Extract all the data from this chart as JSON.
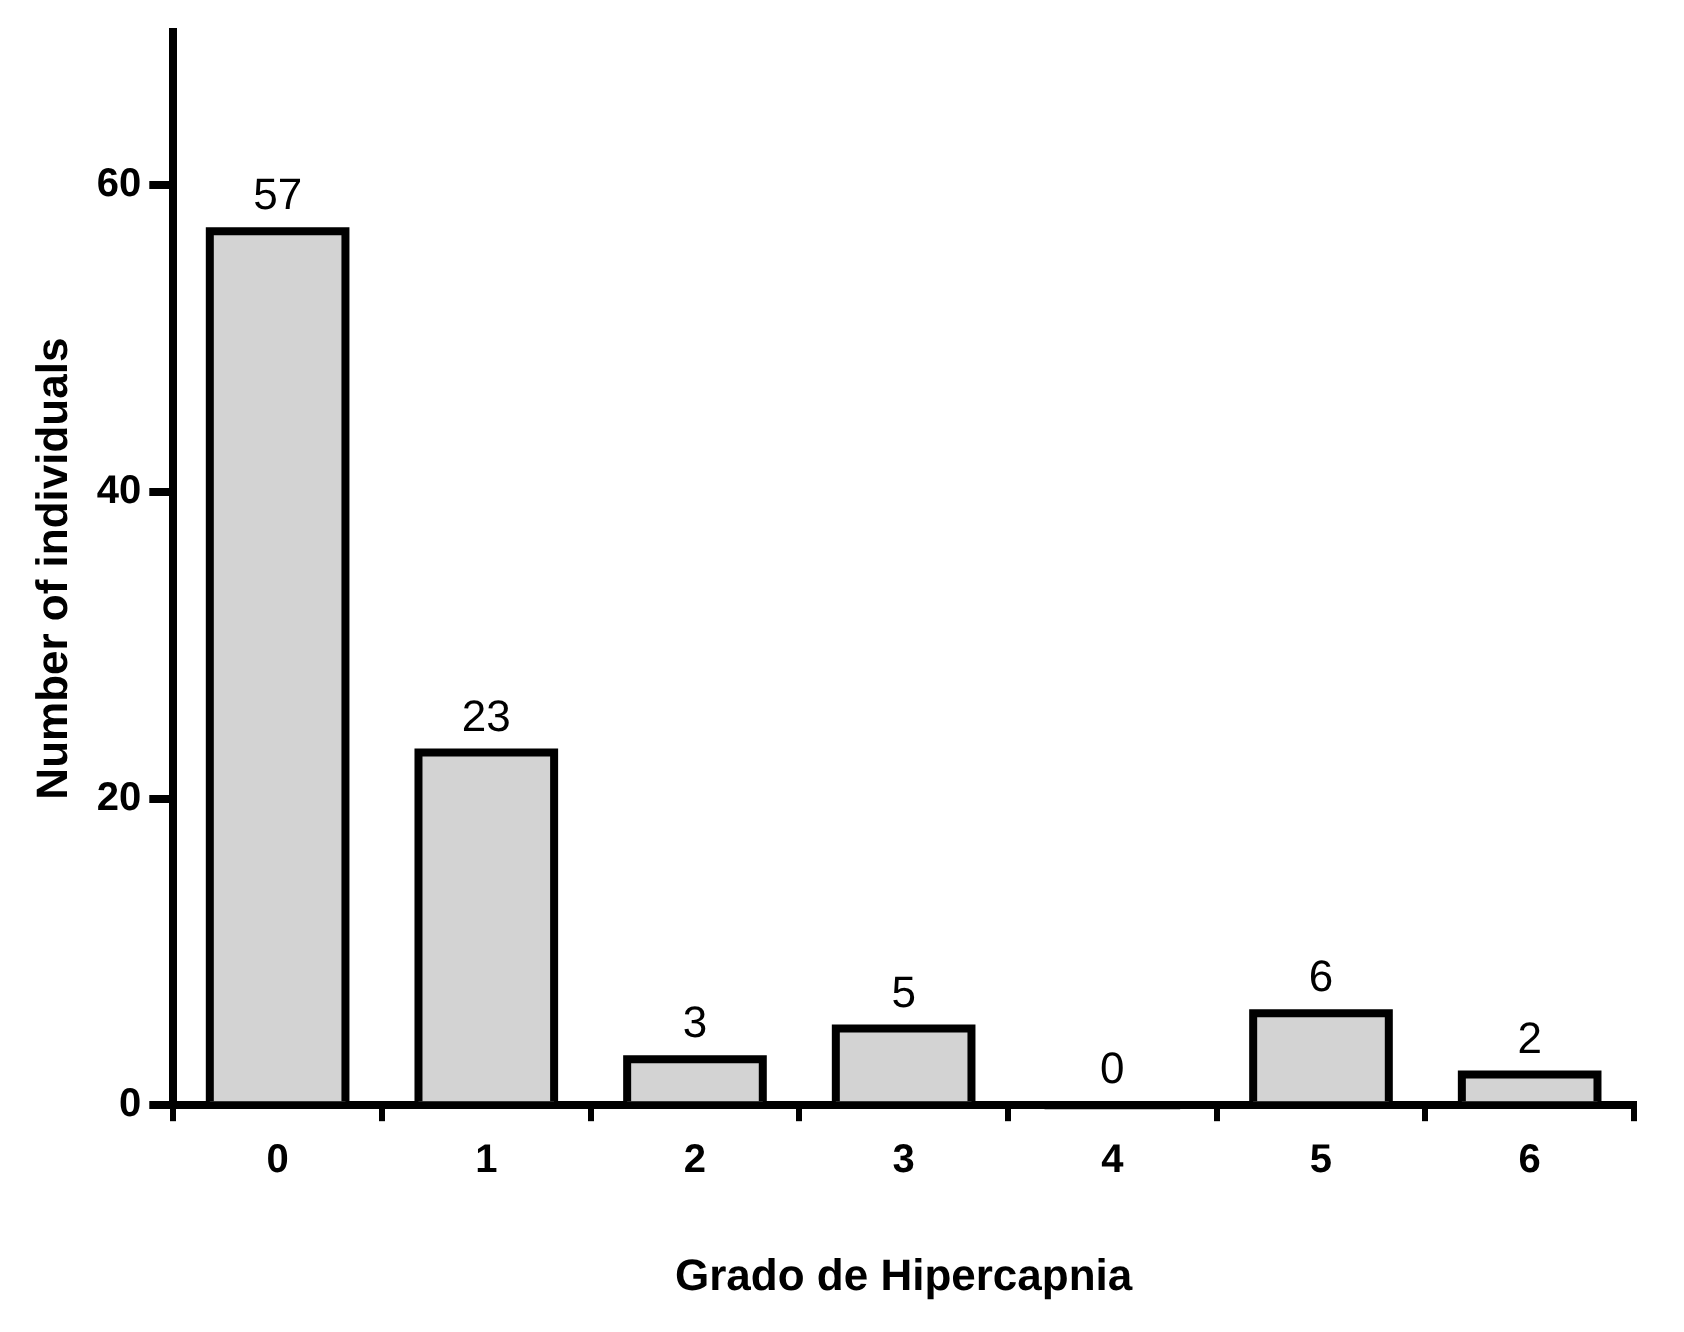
{
  "chart_data": {
    "type": "bar",
    "xlabel": "Grado de Hipercapnia",
    "ylabel": "Number of individuals",
    "categories": [
      "0",
      "1",
      "2",
      "3",
      "4",
      "5",
      "6"
    ],
    "values": [
      57,
      23,
      3,
      5,
      0,
      6,
      2
    ],
    "color": "#d3d3d3",
    "ylim": [
      0,
      70
    ],
    "yticks": [
      0,
      20,
      40,
      60
    ],
    "grid": false,
    "legend": false,
    "data_labels": true
  }
}
